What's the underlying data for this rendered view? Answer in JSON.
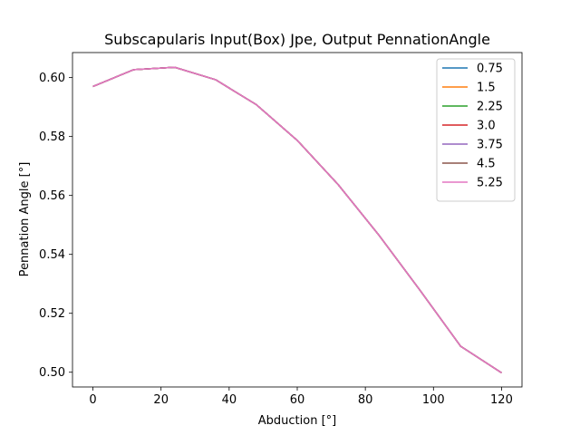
{
  "chart_data": {
    "type": "line",
    "title": "Subscapularis Input(Box) Jpe, Output PennationAngle",
    "xlabel": "Abduction [°]",
    "ylabel": "Pennation Angle [°]",
    "xlim": [
      -6,
      126
    ],
    "ylim": [
      0.495,
      0.6085
    ],
    "xticks": [
      0,
      20,
      40,
      60,
      80,
      100,
      120
    ],
    "xtick_labels": [
      "0",
      "20",
      "40",
      "60",
      "80",
      "100",
      "120"
    ],
    "yticks": [
      0.5,
      0.52,
      0.54,
      0.56,
      0.58,
      0.6
    ],
    "ytick_labels": [
      "0.50",
      "0.52",
      "0.54",
      "0.56",
      "0.58",
      "0.60"
    ],
    "grid": false,
    "legend_position": "top-right",
    "x": [
      0,
      12,
      24,
      36,
      48,
      60,
      72,
      84,
      96,
      108,
      120
    ],
    "series": [
      {
        "name": "0.75",
        "color": "#1f77b4",
        "values": [
          0.597,
          0.6027,
          0.6035,
          0.5993,
          0.5908,
          0.5787,
          0.5637,
          0.5465,
          0.5279,
          0.5088,
          0.4998
        ]
      },
      {
        "name": "1.5",
        "color": "#ff7f0e",
        "values": [
          0.597,
          0.6027,
          0.6035,
          0.5993,
          0.5908,
          0.5787,
          0.5637,
          0.5465,
          0.5279,
          0.5088,
          0.4998
        ]
      },
      {
        "name": "2.25",
        "color": "#2ca02c",
        "values": [
          0.597,
          0.6027,
          0.6035,
          0.5993,
          0.5908,
          0.5787,
          0.5637,
          0.5465,
          0.5279,
          0.5088,
          0.4998
        ]
      },
      {
        "name": "3.0",
        "color": "#d62728",
        "values": [
          0.597,
          0.6027,
          0.6035,
          0.5993,
          0.5908,
          0.5787,
          0.5637,
          0.5465,
          0.5279,
          0.5088,
          0.4998
        ]
      },
      {
        "name": "3.75",
        "color": "#9467bd",
        "values": [
          0.597,
          0.6027,
          0.6035,
          0.5993,
          0.5908,
          0.5787,
          0.5637,
          0.5465,
          0.5279,
          0.5088,
          0.4998
        ]
      },
      {
        "name": "4.5",
        "color": "#8c564b",
        "values": [
          0.597,
          0.6027,
          0.6035,
          0.5993,
          0.5908,
          0.5787,
          0.5637,
          0.5465,
          0.5279,
          0.5088,
          0.4998
        ]
      },
      {
        "name": "5.25",
        "color": "#e377c2",
        "values": [
          0.597,
          0.6027,
          0.6035,
          0.5993,
          0.5908,
          0.5787,
          0.5637,
          0.5465,
          0.5279,
          0.5088,
          0.4998
        ]
      }
    ]
  }
}
